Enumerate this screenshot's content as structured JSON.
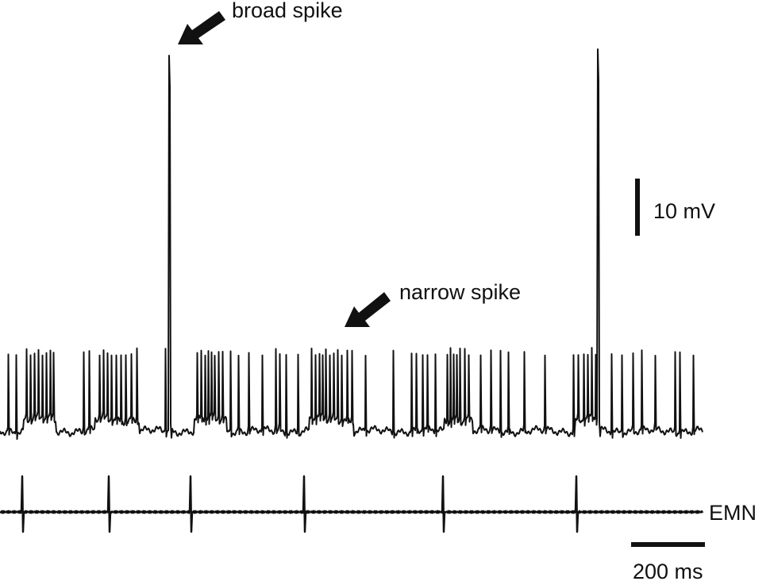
{
  "annotations": {
    "broad": "broad spike",
    "narrow": "narrow spike"
  },
  "scale_bars": {
    "voltage": "10 mV",
    "time": "200 ms"
  },
  "trace_labels": {
    "emn": "EMN"
  }
}
